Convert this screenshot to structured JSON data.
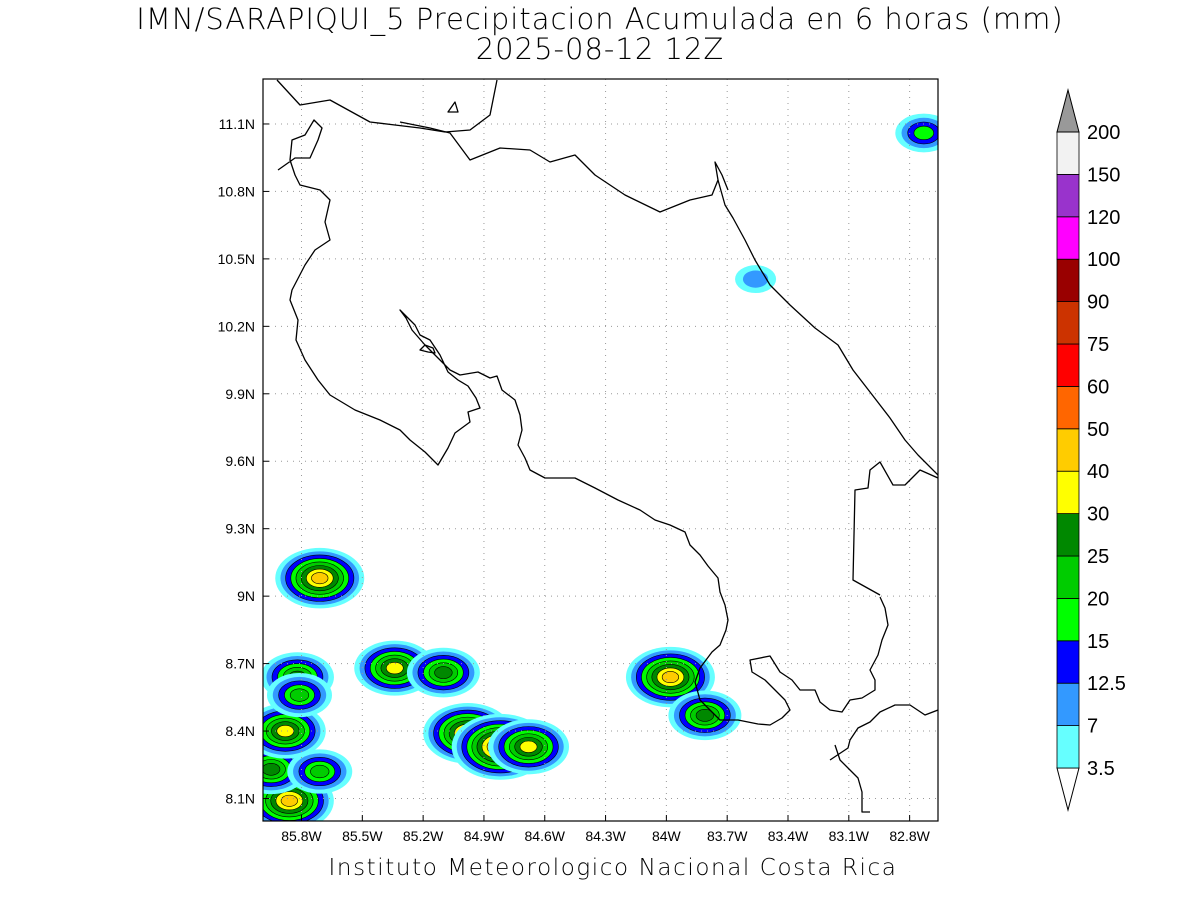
{
  "title": {
    "line1": "IMN/SARAPIQUI_5 Precipitacion Acumulada en 6 horas (mm)",
    "line2": "2025-08-12 12Z"
  },
  "footer": "Instituto Meteorologico Nacional Costa Rica",
  "axes": {
    "x_ticks": [
      "85.8W",
      "85.5W",
      "85.2W",
      "84.9W",
      "84.6W",
      "84.3W",
      "84W",
      "83.7W",
      "83.4W",
      "83.1W",
      "82.8W"
    ],
    "y_ticks": [
      "11.1N",
      "10.8N",
      "10.5N",
      "10.2N",
      "9.9N",
      "9.6N",
      "9.3N",
      "9N",
      "8.7N",
      "8.4N",
      "8.1N"
    ]
  },
  "colorbar": {
    "labels": [
      "3.5",
      "7",
      "12.5",
      "15",
      "20",
      "25",
      "30",
      "40",
      "50",
      "60",
      "75",
      "90",
      "100",
      "120",
      "150",
      "200"
    ],
    "colors": [
      "#66ffff",
      "#3399ff",
      "#0000ff",
      "#00ff00",
      "#00cc00",
      "#008800",
      "#ffff00",
      "#ffcc00",
      "#ff6600",
      "#ff0000",
      "#cc3300",
      "#990000",
      "#ff00ff",
      "#9933cc",
      "#f2f2f2",
      "#999999"
    ]
  },
  "chart_data": {
    "type": "heatmap",
    "title": "IMN/SARAPIQUI_5 Precipitacion Acumulada en 6 horas (mm)",
    "subtitle": "2025-08-12 12Z",
    "xlabel": "",
    "ylabel": "",
    "xlim": [
      -85.99,
      -82.66
    ],
    "ylim": [
      8.0,
      11.3
    ],
    "units": "mm",
    "levels": [
      3.5,
      7,
      12.5,
      15,
      20,
      25,
      30,
      40,
      50,
      60,
      75,
      90,
      100,
      120,
      150,
      200
    ],
    "grid": true,
    "precip_cells": [
      {
        "lon": -85.96,
        "lat": 8.09,
        "max_mm": 50
      },
      {
        "lon": -85.86,
        "lat": 8.09,
        "max_mm": 40
      },
      {
        "lon": -85.95,
        "lat": 8.23,
        "max_mm": 25
      },
      {
        "lon": -85.88,
        "lat": 8.4,
        "max_mm": 30
      },
      {
        "lon": -85.82,
        "lat": 8.64,
        "max_mm": 25
      },
      {
        "lon": -85.81,
        "lat": 8.56,
        "max_mm": 20
      },
      {
        "lon": -85.71,
        "lat": 8.22,
        "max_mm": 20
      },
      {
        "lon": -85.71,
        "lat": 9.08,
        "max_mm": 40
      },
      {
        "lon": -85.34,
        "lat": 8.68,
        "max_mm": 30
      },
      {
        "lon": -85.1,
        "lat": 8.66,
        "max_mm": 25
      },
      {
        "lon": -84.98,
        "lat": 8.39,
        "max_mm": 40
      },
      {
        "lon": -84.82,
        "lat": 8.33,
        "max_mm": 50
      },
      {
        "lon": -84.68,
        "lat": 8.33,
        "max_mm": 30
      },
      {
        "lon": -83.98,
        "lat": 8.64,
        "max_mm": 40
      },
      {
        "lon": -83.81,
        "lat": 8.47,
        "max_mm": 25
      },
      {
        "lon": -82.73,
        "lat": 11.06,
        "max_mm": 15
      },
      {
        "lon": -83.56,
        "lat": 10.41,
        "max_mm": 7
      }
    ]
  }
}
